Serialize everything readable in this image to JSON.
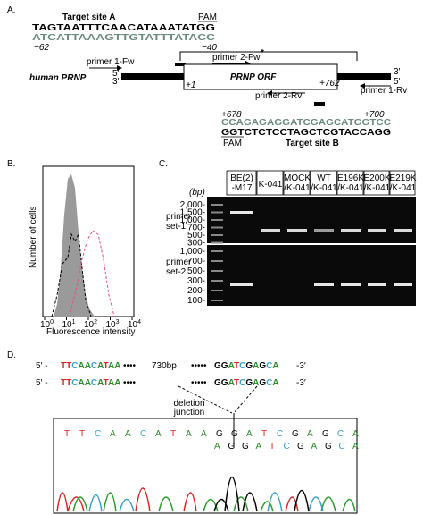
{
  "panel_a": {
    "label": "A.",
    "target_a_title": "Target site A",
    "pam_a": "PAM",
    "seq_a_top": "TAGTAATTTCAACATAAATATGG",
    "seq_a_bottom": "ATCATTAAAGTTGTATTTATACC",
    "pos_a_start": "−62",
    "pos_a_end": "−40",
    "asterisk": "*",
    "gene": "human PRNP",
    "orf": "PRNP ORF",
    "five_left": "5′",
    "three_left": "3′",
    "three_right": "3′",
    "five_right": "5′",
    "pos_start": "+1",
    "pos_end": "+762",
    "primer1_fw": "primer 1-Fw",
    "primer2_fw": "primer 2-Fw",
    "primer2_rv": "primer 2-Rv",
    "primer1_rv": "primer 1-Rv",
    "pos_b_start": "+678",
    "pos_b_end": "+700",
    "seq_b_top": "CCAGAGAGGATCGAGCATGGTCC",
    "seq_b_bottom": "GGTCTCTCCTAGCTCGTACCAGG",
    "pam_b": "PAM",
    "target_b_title": "Target site B"
  },
  "panel_b": {
    "label": "B.",
    "y_label": "Number of cells",
    "x_label": "Fluorescence intensity",
    "x_ticks": [
      {
        "base": "10",
        "exp": "0"
      },
      {
        "base": "10",
        "exp": "1"
      },
      {
        "base": "10",
        "exp": "2"
      },
      {
        "base": "10",
        "exp": "3"
      },
      {
        "base": "10",
        "exp": "4"
      }
    ]
  },
  "panel_c": {
    "label": "C.",
    "lanes": [
      [
        "BE(2)",
        "-M17"
      ],
      [
        "K-041"
      ],
      [
        "MOCK",
        "/K-041"
      ],
      [
        "WT",
        "/K-041"
      ],
      [
        "E196K",
        "/K-041"
      ],
      [
        "E200K",
        "/K-041"
      ],
      [
        "E219K",
        "/K-041"
      ]
    ],
    "bp_unit": "(bp)",
    "set1_label": [
      "primer",
      "set-1"
    ],
    "set1_ladder": [
      "2,000-",
      "1,500-",
      "1,000-",
      "700-",
      "500-",
      "300-"
    ],
    "set2_label": [
      "primer",
      "set-2"
    ],
    "set2_ladder": [
      "1,000-",
      "700-",
      "500-",
      "300-",
      "200-",
      "100-"
    ]
  },
  "panel_d": {
    "label": "D.",
    "row1": [
      "5′ -",
      "TTCAACATAA",
      "••••",
      "730bp",
      "•••••",
      "GGATCGAGCA",
      "-3′"
    ],
    "row2": [
      "5′ -",
      "TTCAACATAA",
      "••••",
      "•••••",
      "GGATCGAGCA",
      "-3′"
    ],
    "junction": [
      "deletion",
      "junction"
    ],
    "chrom_top": "TTCAACATAAGGATCGAGCA",
    "chrom_bottom": "AGGATCGAGCA"
  }
}
